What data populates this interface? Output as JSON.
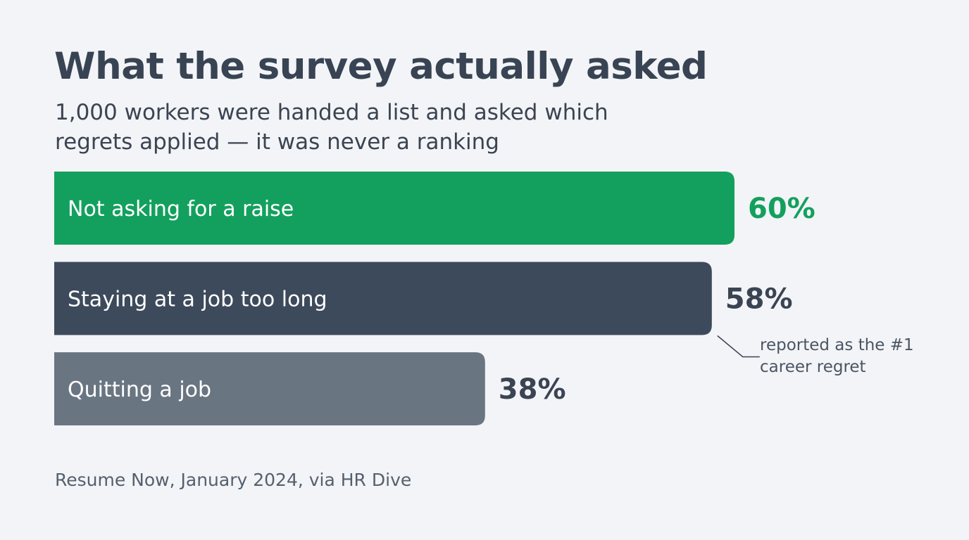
{
  "chart_data": {
    "type": "bar",
    "orientation": "horizontal",
    "title": "What the survey actually asked",
    "subtitle": "1,000 workers were handed a list and asked which regrets applied — it was never a ranking",
    "categories": [
      "Not asking for a raise",
      "Staying at a job too long",
      "Quitting a job"
    ],
    "values": [
      60,
      58,
      38
    ],
    "value_labels": [
      "60%",
      "58%",
      "38%"
    ],
    "colors": [
      "#13a05e",
      "#3d4a5b",
      "#6a7582"
    ],
    "value_label_colors": [
      "#13a05e",
      "#3a4453",
      "#3a4453"
    ],
    "xlim": [
      0,
      100
    ],
    "grid": false,
    "annotation": {
      "text": "reported as the #1 career regret",
      "target_category": "Staying at a job too long"
    },
    "source": "Resume Now, January 2024, via HR Dive"
  }
}
